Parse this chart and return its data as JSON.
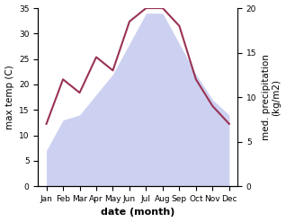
{
  "months": [
    "Jan",
    "Feb",
    "Mar",
    "Apr",
    "May",
    "Jun",
    "Jul",
    "Aug",
    "Sep",
    "Oct",
    "Nov",
    "Dec"
  ],
  "temp_max": [
    7,
    13,
    14,
    18,
    22,
    28,
    34,
    34,
    28,
    22,
    17,
    14
  ],
  "precipitation": [
    7,
    12,
    10.5,
    14.5,
    13,
    18.5,
    20,
    20,
    18,
    12,
    9,
    7
  ],
  "temp_fill_color": "#c8ccf0",
  "precip_color": "#993355",
  "temp_ylim": [
    0,
    35
  ],
  "precip_ylim": [
    0,
    20
  ],
  "temp_yticks": [
    0,
    5,
    10,
    15,
    20,
    25,
    30,
    35
  ],
  "precip_yticks": [
    0,
    5,
    10,
    15,
    20
  ],
  "xlabel": "date (month)",
  "ylabel_left": "max temp (C)",
  "ylabel_right": "med. precipitation\n(kg/m2)",
  "axis_fontsize": 7.5,
  "tick_fontsize": 6.5,
  "xlabel_fontsize": 8
}
